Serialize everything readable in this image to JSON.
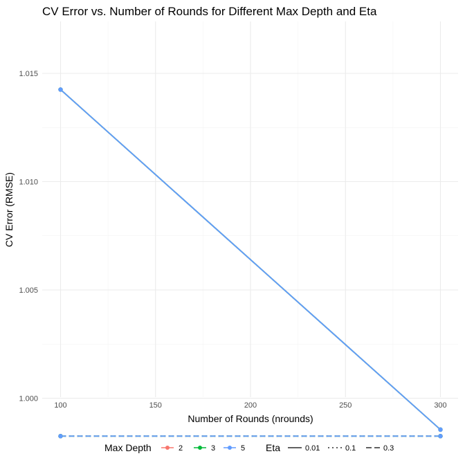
{
  "chart_data": {
    "type": "line",
    "title": "CV Error vs. Number of Rounds for Different Max Depth and Eta",
    "xlabel": "Number of Rounds (nrounds)",
    "ylabel": "CV Error (RMSE)",
    "xlim": [
      100,
      300
    ],
    "ylim": [
      0.9982,
      1.0152
    ],
    "x_ticks": [
      100,
      150,
      200,
      250,
      300
    ],
    "x_tick_labels": [
      "100",
      "150",
      "200",
      "250",
      "300"
    ],
    "y_ticks": [
      1.0,
      1.005,
      1.01,
      1.015
    ],
    "y_tick_labels": [
      "1.000",
      "1.005",
      "1.010",
      "1.015"
    ],
    "grid": true,
    "legend_position": "bottom",
    "legend": {
      "color_title": "Max Depth",
      "color_entries": [
        {
          "label": "2",
          "color": "#F8766D"
        },
        {
          "label": "3",
          "color": "#00BA38"
        },
        {
          "label": "5",
          "color": "#619CFF"
        }
      ],
      "linetype_title": "Eta",
      "linetype_entries": [
        {
          "label": "0.01",
          "dash": "solid"
        },
        {
          "label": "0.1",
          "dash": "dotted"
        },
        {
          "label": "0.3",
          "dash": "dashed"
        }
      ]
    },
    "series": [
      {
        "max_depth": "2",
        "eta": "0.01",
        "color": "#F8766D",
        "dash": "solid",
        "x": [
          100,
          300
        ],
        "y": [
          1.01425,
          0.99855
        ]
      },
      {
        "max_depth": "3",
        "eta": "0.01",
        "color": "#00BA38",
        "dash": "solid",
        "x": [
          100,
          300
        ],
        "y": [
          1.01425,
          0.99855
        ]
      },
      {
        "max_depth": "5",
        "eta": "0.01",
        "color": "#619CFF",
        "dash": "solid",
        "x": [
          100,
          300
        ],
        "y": [
          1.01425,
          0.99855
        ]
      },
      {
        "max_depth": "2",
        "eta": "0.1",
        "color": "#F8766D",
        "dash": "dotted",
        "x": [
          100,
          300
        ],
        "y": [
          0.99825,
          0.99825
        ]
      },
      {
        "max_depth": "3",
        "eta": "0.1",
        "color": "#00BA38",
        "dash": "dotted",
        "x": [
          100,
          300
        ],
        "y": [
          0.99825,
          0.99825
        ]
      },
      {
        "max_depth": "5",
        "eta": "0.1",
        "color": "#619CFF",
        "dash": "dotted",
        "x": [
          100,
          300
        ],
        "y": [
          0.99825,
          0.99825
        ]
      },
      {
        "max_depth": "2",
        "eta": "0.3",
        "color": "#F8766D",
        "dash": "dashed",
        "x": [
          100,
          300
        ],
        "y": [
          0.99825,
          0.99825
        ]
      },
      {
        "max_depth": "3",
        "eta": "0.3",
        "color": "#00BA38",
        "dash": "dashed",
        "x": [
          100,
          300
        ],
        "y": [
          0.99825,
          0.99825
        ]
      },
      {
        "max_depth": "5",
        "eta": "0.3",
        "color": "#619CFF",
        "dash": "dashed",
        "x": [
          100,
          300
        ],
        "y": [
          0.99825,
          0.99825
        ]
      }
    ]
  }
}
